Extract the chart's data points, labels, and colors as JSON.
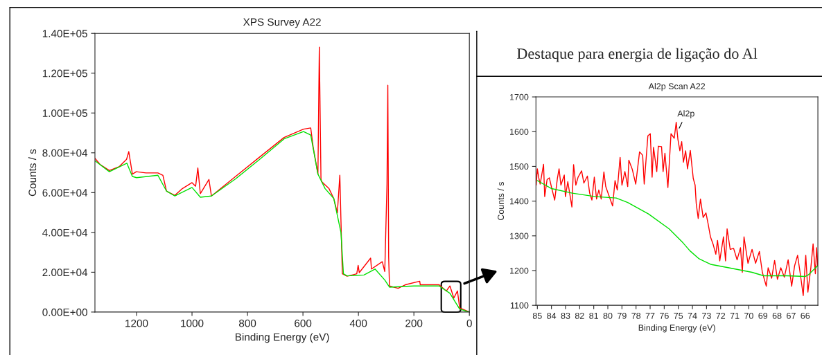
{
  "chart_data": [
    {
      "type": "line",
      "title": "XPS Survey A22",
      "xlabel": "Binding Energy (eV)",
      "ylabel": "Counts / s",
      "xlim": [
        1350,
        0
      ],
      "ylim": [
        0,
        140000
      ],
      "xticks": [
        1200,
        1000,
        800,
        600,
        400,
        200,
        0
      ],
      "yticks": [
        {
          "value": 0,
          "label": "0.00E+00"
        },
        {
          "value": 20000,
          "label": "2.00E+04"
        },
        {
          "value": 40000,
          "label": "4.00E+04"
        },
        {
          "value": 60000,
          "label": "6.00E+04"
        },
        {
          "value": 80000,
          "label": "8.00E+04"
        },
        {
          "value": 100000,
          "label": "1.00E+05"
        },
        {
          "value": 120000,
          "label": "1.20E+05"
        },
        {
          "value": 140000,
          "label": "1.40E+05"
        }
      ],
      "marker": "none",
      "line_style": "solid",
      "series": [
        {
          "color": "#ff0000",
          "x": [
            1350,
            1332,
            1298,
            1263,
            1236,
            1228,
            1215,
            1201,
            1166,
            1123,
            1105,
            1092,
            1062,
            1035,
            1000,
            987,
            979,
            970,
            939,
            930,
            843,
            756,
            668,
            598,
            572,
            563,
            546,
            541,
            535,
            533,
            506,
            489,
            476,
            467,
            463,
            458,
            441,
            406,
            401,
            397,
            356,
            353,
            314,
            305,
            297,
            294,
            291,
            288,
            257,
            231,
            179,
            177,
            109,
            83,
            70,
            56,
            43,
            35,
            0
          ],
          "values": [
            77300,
            74200,
            71100,
            73000,
            76700,
            80600,
            69300,
            70500,
            69900,
            69900,
            68700,
            60800,
            58600,
            62000,
            65000,
            63200,
            72400,
            59500,
            66600,
            58300,
            68100,
            77900,
            87700,
            91900,
            92500,
            82800,
            69300,
            133100,
            66900,
            65600,
            62000,
            57100,
            49800,
            68700,
            46100,
            19200,
            18000,
            19200,
            23500,
            19800,
            27100,
            21600,
            25300,
            20400,
            64400,
            113900,
            27700,
            13100,
            11900,
            13700,
            15500,
            13700,
            13700,
            10600,
            13100,
            7000,
            10600,
            2100,
            0
          ]
        },
        {
          "color": "#00e000",
          "x": [
            1350,
            1298,
            1235,
            1215,
            1200,
            1123,
            1092,
            1062,
            1000,
            970,
            930,
            843,
            756,
            668,
            598,
            572,
            546,
            520,
            489,
            463,
            454,
            441,
            380,
            340,
            305,
            288,
            200,
            109,
            70,
            35,
            0
          ],
          "values": [
            76000,
            70500,
            74800,
            68100,
            67500,
            68700,
            60800,
            58300,
            62600,
            57700,
            58300,
            66900,
            76700,
            87000,
            90700,
            88900,
            69300,
            62000,
            57100,
            40000,
            19200,
            18200,
            18600,
            21600,
            16100,
            12500,
            13100,
            13100,
            9400,
            1500,
            0
          ]
        }
      ]
    },
    {
      "type": "line",
      "subtitle": "Destaque para energia de ligação do Al",
      "title": "Al2p Scan A22",
      "xlabel": "Binding Energy (eV)",
      "ylabel": "Counts / s",
      "xlim": [
        85.1,
        65.1
      ],
      "ylim": [
        1100,
        1700
      ],
      "xticks": [
        85,
        84,
        83,
        82,
        81,
        80,
        79,
        78,
        77,
        76,
        75,
        74,
        73,
        72,
        71,
        70,
        69,
        68,
        67,
        66
      ],
      "yticks": [
        1100,
        1200,
        1300,
        1400,
        1500,
        1600,
        1700
      ],
      "marker": "none",
      "line_style": "solid",
      "annotations": [
        {
          "text": "Al2p",
          "x": 75.0,
          "y": 1605
        }
      ],
      "series": [
        {
          "color": "#ff0000",
          "x": [
            85.08,
            85.0,
            84.89,
            84.8,
            84.56,
            84.48,
            84.31,
            84.15,
            83.99,
            83.77,
            83.58,
            83.46,
            83.33,
            83.09,
            83.01,
            82.84,
            82.55,
            82.43,
            82.27,
            82.11,
            81.86,
            81.7,
            81.45,
            81.29,
            81.13,
            80.96,
            80.8,
            80.64,
            80.47,
            80.28,
            80.15,
            79.9,
            79.66,
            79.49,
            79.33,
            79.13,
            79.0,
            78.79,
            78.59,
            78.51,
            78.27,
            78.02,
            77.75,
            77.53,
            77.42,
            77.16,
            76.99,
            76.86,
            76.76,
            76.53,
            76.42,
            76.19,
            76.08,
            75.95,
            75.74,
            75.52,
            75.29,
            75.15,
            75.03,
            74.89,
            74.76,
            74.64,
            74.48,
            74.35,
            74.15,
            73.94,
            73.81,
            73.73,
            73.59,
            73.43,
            73.24,
            73.04,
            72.88,
            72.72,
            72.52,
            72.34,
            72.22,
            72.06,
            71.8,
            71.65,
            71.54,
            71.32,
            71.08,
            70.83,
            70.59,
            70.46,
            70.34,
            70.06,
            69.77,
            69.52,
            69.25,
            69.04,
            68.76,
            68.63,
            68.38,
            68.17,
            67.97,
            67.73,
            67.48,
            67.21,
            66.96,
            66.75,
            66.54,
            66.34,
            66.14,
            65.96,
            65.81,
            65.6,
            65.44,
            65.28,
            65.19,
            65.11
          ],
          "values": [
            1446,
            1493,
            1465,
            1449,
            1506,
            1413,
            1462,
            1467,
            1439,
            1403,
            1465,
            1493,
            1446,
            1475,
            1413,
            1456,
            1383,
            1505,
            1446,
            1469,
            1487,
            1452,
            1472,
            1423,
            1403,
            1469,
            1406,
            1432,
            1406,
            1484,
            1442,
            1413,
            1386,
            1459,
            1432,
            1526,
            1446,
            1485,
            1442,
            1518,
            1492,
            1449,
            1542,
            1532,
            1449,
            1588,
            1594,
            1469,
            1555,
            1485,
            1558,
            1557,
            1485,
            1538,
            1439,
            1594,
            1581,
            1627,
            1578,
            1545,
            1571,
            1512,
            1545,
            1493,
            1546,
            1465,
            1446,
            1393,
            1350,
            1406,
            1353,
            1366,
            1333,
            1297,
            1274,
            1247,
            1287,
            1228,
            1297,
            1228,
            1320,
            1261,
            1264,
            1231,
            1266,
            1195,
            1297,
            1221,
            1261,
            1221,
            1255,
            1195,
            1155,
            1208,
            1178,
            1229,
            1175,
            1208,
            1181,
            1231,
            1155,
            1214,
            1244,
            1188,
            1128,
            1244,
            1138,
            1208,
            1277,
            1191,
            1266,
            1214
          ]
        },
        {
          "color": "#00e000",
          "x": [
            85.0,
            83.99,
            82.52,
            80.88,
            79.41,
            78.59,
            77.12,
            75.65,
            74.67,
            74.18,
            73.53,
            72.71,
            71.41,
            69.77,
            68.95,
            67.32,
            66.01,
            65.77,
            65.11
          ],
          "values": [
            1459,
            1436,
            1423,
            1413,
            1409,
            1396,
            1363,
            1320,
            1280,
            1257,
            1234,
            1218,
            1208,
            1195,
            1185,
            1185,
            1183,
            1188,
            1214
          ]
        }
      ]
    }
  ]
}
